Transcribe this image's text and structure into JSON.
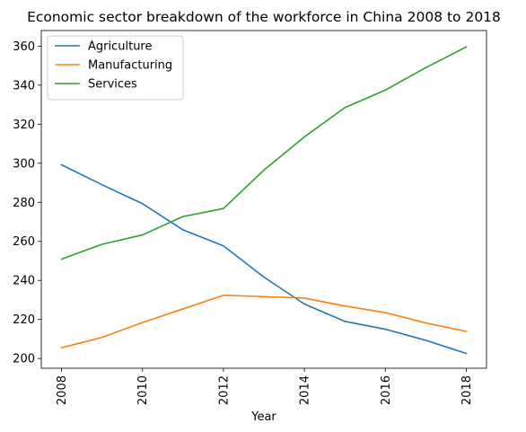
{
  "chart_data": {
    "type": "line",
    "title": "Economic sector breakdown of the workforce in China 2008 to 2018",
    "xlabel": "Year",
    "ylabel": "",
    "x": [
      2008,
      2009,
      2010,
      2011,
      2012,
      2013,
      2014,
      2015,
      2016,
      2017,
      2018
    ],
    "xticks": [
      2008,
      2010,
      2012,
      2014,
      2016,
      2018
    ],
    "yticks": [
      200,
      220,
      240,
      260,
      280,
      300,
      320,
      340,
      360
    ],
    "xlim": [
      2007.5,
      2018.5
    ],
    "ylim": [
      195,
      368
    ],
    "grid": false,
    "legend_position": "top-left",
    "series": [
      {
        "name": "Agriculture",
        "color": "#1f77b4",
        "values": [
          299.2,
          289.0,
          279.3,
          265.9,
          257.7,
          241.7,
          227.9,
          219.0,
          215.0,
          209.3,
          202.6
        ]
      },
      {
        "name": "Manufacturing",
        "color": "#ff7f0e",
        "values": [
          205.5,
          210.8,
          218.4,
          225.4,
          232.4,
          231.7,
          230.9,
          226.9,
          223.5,
          218.2,
          213.9
        ]
      },
      {
        "name": "Services",
        "color": "#2ca02c",
        "values": [
          250.9,
          258.5,
          263.3,
          272.7,
          276.8,
          296.5,
          313.5,
          328.5,
          337.5,
          349.0,
          359.6
        ]
      }
    ]
  }
}
